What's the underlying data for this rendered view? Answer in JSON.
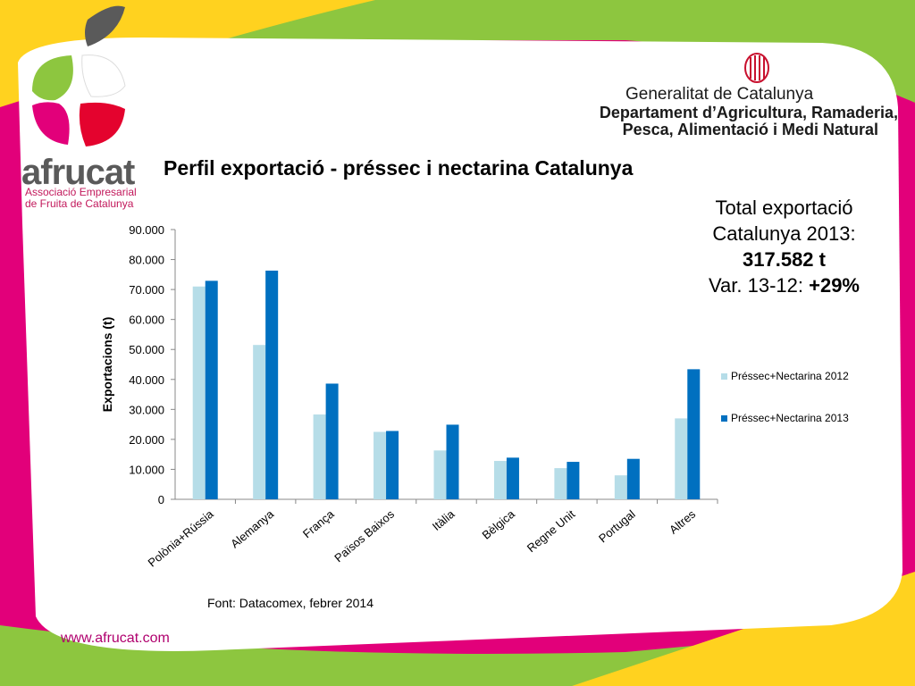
{
  "brand": {
    "name": "afrucat",
    "subtitle_line1": "Associació Empresarial",
    "subtitle_line2": "de Fruita de Catalunya"
  },
  "organization": {
    "name": "Generalitat de Catalunya",
    "dept_line1": "Departament d’Agricultura, Ramaderia,",
    "dept_line2": "Pesca, Alimentació i Medi Natural"
  },
  "title": "Perfil exportació - préssec i nectarina Catalunya",
  "summary": {
    "line1": "Total exportació",
    "line2": "Catalunya 2013:",
    "total": "317.582 t",
    "var_label": "Var. 13-12: ",
    "var_value": "+29%"
  },
  "source": "Font: Datacomex, febrer 2014",
  "website": "www.afrucat.com",
  "colors": {
    "series_2012": "#b6dde8",
    "series_2013": "#0070c0",
    "magenta": "#e2007a",
    "yellow": "#ffd21f",
    "green": "#8dc63f",
    "red": "#e4032e"
  },
  "chart_data": {
    "type": "bar",
    "title": "",
    "xlabel": "",
    "ylabel": "Exportacions (t)",
    "ylim": [
      0,
      90000
    ],
    "yticks": [
      0,
      10000,
      20000,
      30000,
      40000,
      50000,
      60000,
      70000,
      80000,
      90000
    ],
    "ytick_labels": [
      "0",
      "10.000",
      "20.000",
      "30.000",
      "40.000",
      "50.000",
      "60.000",
      "70.000",
      "80.000",
      "90.000"
    ],
    "categories": [
      "Polònia+Rússia",
      "Alemanya",
      "França",
      "Països Baixos",
      "Itàlia",
      "Bèlgica",
      "Regne Unit",
      "Portugal",
      "Altres"
    ],
    "series": [
      {
        "name": "Préssec+Nectarina 2012",
        "values": [
          71000,
          51500,
          28300,
          22500,
          16300,
          12800,
          10400,
          8000,
          27000
        ]
      },
      {
        "name": "Préssec+Nectarina 2013",
        "values": [
          72900,
          76300,
          38600,
          22800,
          24900,
          13900,
          12500,
          13500,
          43400
        ]
      }
    ],
    "legend_position": "right",
    "grid": false
  }
}
